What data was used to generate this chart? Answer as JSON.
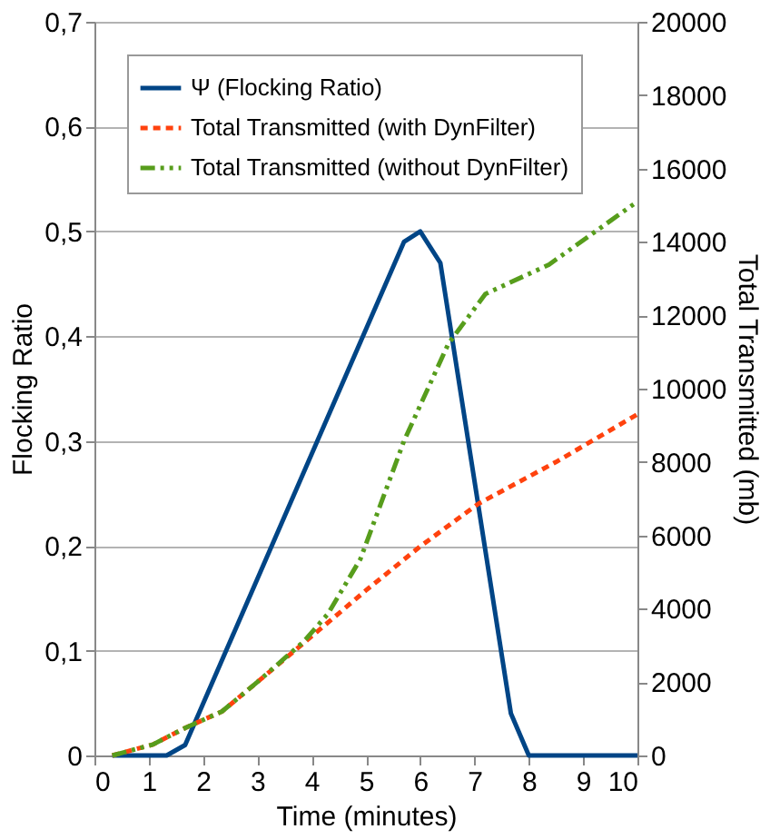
{
  "chart_data": {
    "type": "line",
    "xlabel": "Time (minutes)",
    "ylabel": "Flocking Ratio",
    "y2label": "Total Transmitted (mb)",
    "xlim": [
      0,
      10
    ],
    "xticks": [
      0,
      1,
      2,
      3,
      4,
      5,
      6,
      7,
      8,
      9,
      10
    ],
    "ylim": [
      0,
      0.7
    ],
    "yticks": [
      0,
      {
        "value": 0.1,
        "label": "0,1"
      },
      {
        "value": 0.2,
        "label": "0,2"
      },
      {
        "value": 0.3,
        "label": "0,3"
      },
      {
        "value": 0.4,
        "label": "0,4"
      },
      {
        "value": 0.5,
        "label": "0,5"
      },
      {
        "value": 0.6,
        "label": "0,6"
      },
      {
        "value": 0.7,
        "label": "0,7"
      }
    ],
    "y2lim": [
      0,
      20000
    ],
    "y2ticks": [
      0,
      2000,
      4000,
      6000,
      8000,
      10000,
      12000,
      14000,
      16000,
      18000,
      20000
    ],
    "grid": "y",
    "legend": "top left",
    "marker": "none",
    "series": [
      {
        "name": "Ψ (Flocking Ratio)",
        "color": "#004586",
        "line_style": "solid",
        "x": [
          0.33,
          1.33,
          1.67,
          5.7,
          6.0,
          6.37,
          7.67,
          8.0,
          10
        ],
        "values": [
          0,
          0,
          0.01,
          0.49,
          0.5,
          0.47,
          0.04,
          0,
          0
        ]
      },
      {
        "name": "Total Transmitted (with DynFilter)",
        "color": "#ff420e",
        "line_style": "dotted",
        "axis": "y2",
        "x": [
          0.33,
          1.08,
          1.67,
          2.35,
          3.0,
          3.85,
          5.0,
          6.0,
          7.08,
          8.5,
          10
        ],
        "values": [
          0,
          300,
          750,
          1200,
          2000,
          3060,
          4500,
          5700,
          6870,
          8000,
          9300
        ]
      },
      {
        "name": "Total Transmitted (without DynFilter)",
        "color": "#579d1c",
        "line_style": "dashed",
        "axis": "y2",
        "x": [
          0.33,
          1.08,
          1.67,
          2.35,
          3.0,
          3.85,
          4.3,
          4.9,
          5.7,
          6.52,
          7.2,
          8.37,
          10
        ],
        "values": [
          0,
          300,
          750,
          1200,
          2000,
          3100,
          3860,
          5360,
          8570,
          11230,
          12580,
          13380,
          15100
        ]
      }
    ]
  }
}
